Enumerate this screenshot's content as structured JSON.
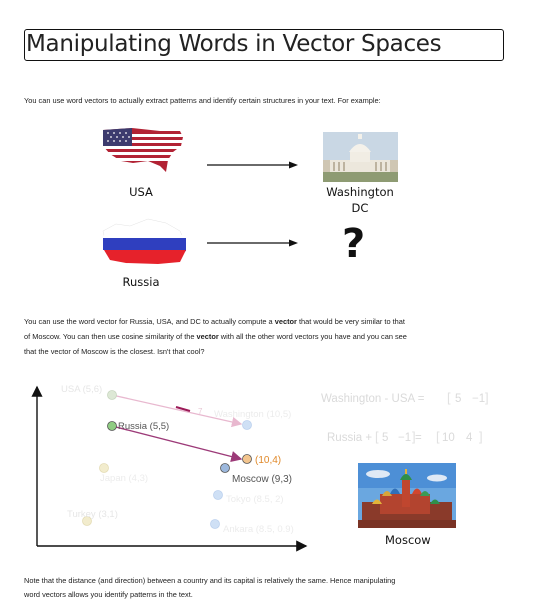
{
  "page": {
    "title": "Manipulating Words in Vector Spaces",
    "intro": "You can use word vectors to actually extract patterns and identify certain structures in your text. For example:",
    "diagram": {
      "usa_label": "USA",
      "washington_label_line1": "Washington",
      "washington_label_line2": "DC",
      "russia_label": "Russia",
      "unknown": "?"
    },
    "body_lines": [
      [
        "You can use the word vector for Russia, USA, and DC to actually compute a ",
        "vector",
        " that would be very similar to that"
      ],
      [
        "of Moscow. You can then use cosine similarity of the ",
        "vector",
        " with all the other word vectors you have and you can see"
      ],
      [
        "that the vector of Moscow is the closest. Isn't that cool?",
        "",
        ""
      ]
    ],
    "plot": {
      "points": [
        {
          "label": "USA (5,6)",
          "style": "faded",
          "color": "#dde8d5"
        },
        {
          "label": "Washington (10,5)",
          "style": "faded",
          "color": "#cfe0f5"
        },
        {
          "label": "Russia (5,5)",
          "style": "active",
          "color": "#8fcc82"
        },
        {
          "label": "(10,4)",
          "style": "active",
          "color": "#f3c58e"
        },
        {
          "label": "Japan (4,3)",
          "style": "faded",
          "color": "#f2eccd"
        },
        {
          "label": "Moscow (9,3)",
          "style": "active",
          "color": "#9cb8dd"
        },
        {
          "label": "Tokyo (8.5, 2)",
          "style": "faded",
          "color": "#cfe0f5"
        },
        {
          "label": "Turkey (3,1)",
          "style": "faded",
          "color": "#f2eccd"
        },
        {
          "label": "Ankara (8.5, 0.9)",
          "style": "faded",
          "color": "#cfe0f5"
        }
      ],
      "arrow_label": "7",
      "eq1": {
        "left": "Washington - USA = ",
        "v1": "5",
        "v2": "−1"
      },
      "eq2": {
        "left": "Russia + ",
        "v1": "5",
        "v2": "−1",
        "eq": " = ",
        "r1": "10",
        "r2": "4"
      },
      "moscow_caption": "Moscow"
    },
    "note_line1": "Note that the distance (and direction) between a country and its capital is relatively the same. Hence manipulating",
    "note_line2": "word vectors allows you identify patterns in the text."
  }
}
